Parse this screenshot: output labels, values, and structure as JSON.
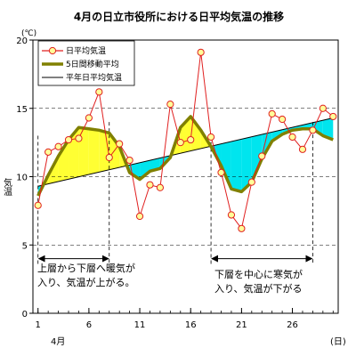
{
  "chart_data": {
    "type": "line",
    "title": "4月の日立市役所における日平均気温の推移",
    "ylabel": "気温",
    "yunit": "(℃)",
    "xunit": "(日)",
    "xmonth_label": "4月",
    "ylim": [
      0,
      20
    ],
    "yticks": [
      0,
      5,
      10,
      15,
      20
    ],
    "xlim": [
      0.5,
      30.5
    ],
    "xticks": [
      1,
      6,
      11,
      16,
      21,
      26
    ],
    "grid": "horizontal-dashed",
    "legend_placement": "top-left",
    "legend": [
      "日平均気温",
      "5日間移動平均",
      "平年日平均気温"
    ],
    "series": [
      {
        "name": "日平均気温",
        "color": "#e02020",
        "marker": "circle-open-yellow",
        "x": [
          1,
          2,
          3,
          4,
          5,
          6,
          7,
          8,
          9,
          10,
          11,
          12,
          13,
          14,
          15,
          16,
          17,
          18,
          19,
          20,
          21,
          22,
          23,
          24,
          25,
          26,
          27,
          28,
          29,
          30
        ],
        "values": [
          7.9,
          11.8,
          12.2,
          12.7,
          12.8,
          14.3,
          16.2,
          11.4,
          12.4,
          11.2,
          7.1,
          9.4,
          9.2,
          15.3,
          12.5,
          12.7,
          19.1,
          12.9,
          10.3,
          7.2,
          6.2,
          9.6,
          11.5,
          14.6,
          14.2,
          12.9,
          12.0,
          13.4,
          15.0,
          14.4
        ]
      },
      {
        "name": "5日間移動平均",
        "color": "#808000",
        "x": [
          1,
          2,
          3,
          4,
          5,
          6,
          7,
          8,
          9,
          10,
          11,
          12,
          13,
          14,
          15,
          16,
          17,
          18,
          19,
          20,
          21,
          22,
          23,
          24,
          25,
          26,
          27,
          28,
          29,
          30
        ],
        "values": [
          8.6,
          10.1,
          11.5,
          12.7,
          13.6,
          13.5,
          13.4,
          13.2,
          12.2,
          10.3,
          9.8,
          10.4,
          10.6,
          11.4,
          13.6,
          14.4,
          13.4,
          12.2,
          10.8,
          9.1,
          8.9,
          9.6,
          11.3,
          12.6,
          13.1,
          13.4,
          13.5,
          13.5,
          13.0,
          12.7
        ]
      },
      {
        "name": "平年日平均気温",
        "color": "#000000",
        "x": [
          1,
          30
        ],
        "values": [
          9.3,
          14.3
        ]
      }
    ],
    "fill_warm_color": "#ffff33",
    "fill_cold_color": "#00e5ee",
    "annotations": [
      {
        "text_lines": [
          "上層から下層へ暖気が",
          "入り、気温が上がる。"
        ],
        "span": [
          1,
          8
        ]
      },
      {
        "text_lines": [
          "下層を中心に寒気が",
          "入り、気温が下がる"
        ],
        "span": [
          18,
          28
        ]
      }
    ]
  }
}
